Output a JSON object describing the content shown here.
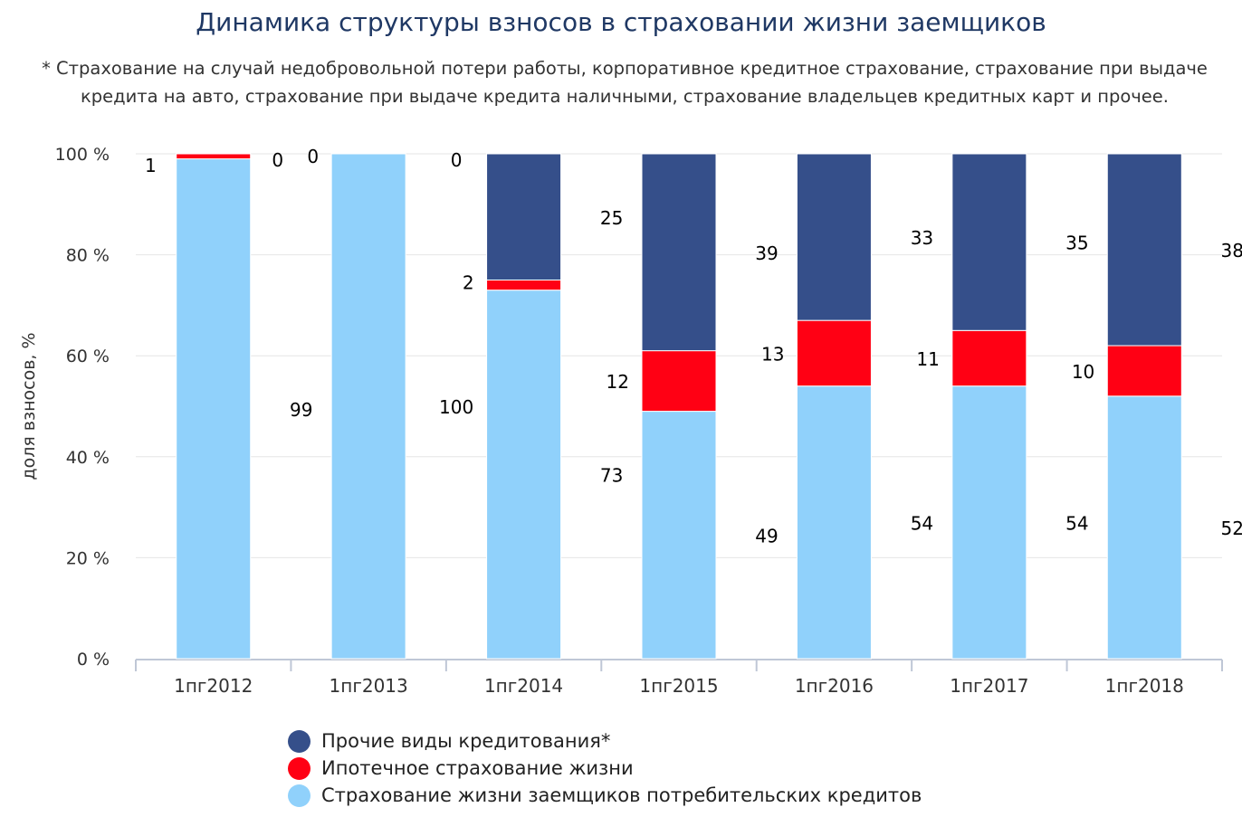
{
  "chart_data": {
    "type": "bar",
    "stacked": true,
    "title": "Динамика структуры взносов в страховании жизни заемщиков",
    "subtitle": "* Страхование на случай недобровольной потери работы, корпоративное кредитное страхование, страхование при выдаче кредита на авто, страхование при выдаче кредита наличными, страхование владельцев кредитных карт и прочее.",
    "xlabel": "",
    "ylabel": "доля взносов, %",
    "ylim": [
      0,
      100
    ],
    "y_ticks": [
      "0 %",
      "20 %",
      "40 %",
      "60 %",
      "80 %",
      "100 %"
    ],
    "grid": true,
    "legend_position": "bottom",
    "categories": [
      "1пг2012",
      "1пг2013",
      "1пг2014",
      "1пг2015",
      "1пг2016",
      "1пг2017",
      "1пг2018"
    ],
    "series": [
      {
        "name": "Страхование жизни заемщиков потребительских кредитов",
        "color": "#90d1fb",
        "values": [
          99,
          100,
          73,
          49,
          54,
          54,
          52
        ]
      },
      {
        "name": "Ипотечное страхование жизни",
        "color": "#ff0014",
        "values": [
          1,
          0,
          2,
          12,
          13,
          11,
          10
        ]
      },
      {
        "name": "Прочие виды кредитования*",
        "color": "#354f8a",
        "values": [
          0,
          0,
          25,
          39,
          33,
          35,
          38
        ]
      }
    ],
    "legend_order": [
      2,
      1,
      0
    ]
  }
}
